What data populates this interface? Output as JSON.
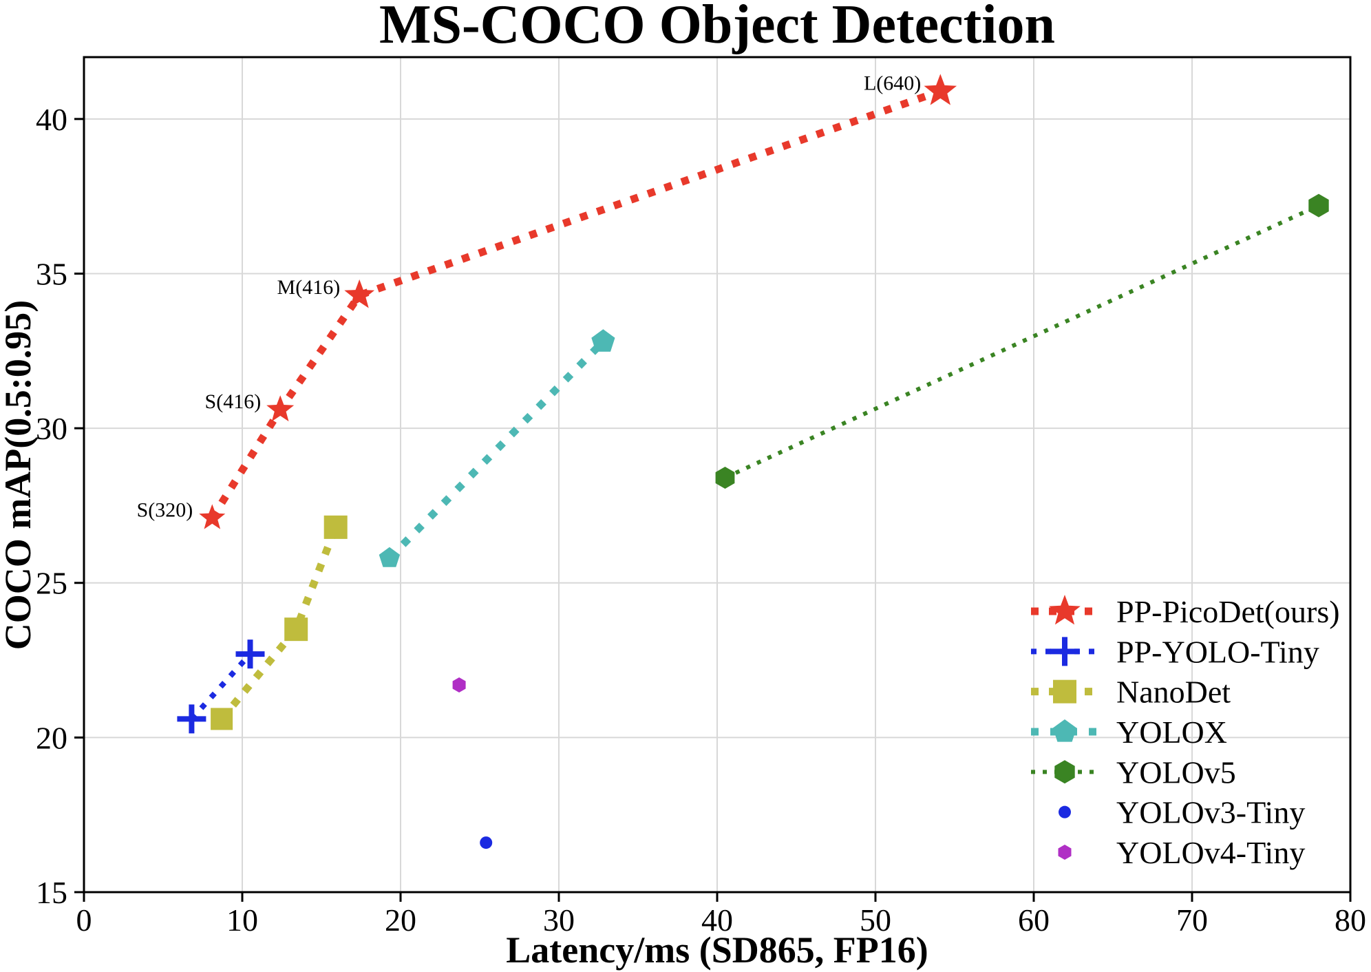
{
  "chart_data": {
    "type": "scatter-line",
    "title": "MS-COCO Object Detection",
    "xlabel": "Latency/ms (SD865, FP16)",
    "ylabel": "COCO mAP(0.5:0.95)",
    "xlim": [
      0,
      80
    ],
    "ylim": [
      15,
      42
    ],
    "x_ticks": [
      0,
      10,
      20,
      30,
      40,
      50,
      60,
      70,
      80
    ],
    "y_ticks": [
      15,
      20,
      25,
      30,
      35,
      40
    ],
    "grid": true,
    "grid_color": "#d8d8d8",
    "legend": {
      "position": "lower right",
      "frame": false
    },
    "series": [
      {
        "name": "PP-PicoDet(ours)",
        "color": "#e8392b",
        "marker": "star",
        "line": "dashed",
        "line_width": 11,
        "dash": [
          11,
          15
        ],
        "points": [
          {
            "x": 8.1,
            "y": 27.1,
            "label": "S(320)",
            "size": 20
          },
          {
            "x": 12.4,
            "y": 30.6,
            "label": "S(416)",
            "size": 21
          },
          {
            "x": 17.4,
            "y": 34.3,
            "label": "M(416)",
            "size": 23
          },
          {
            "x": 54.1,
            "y": 40.9,
            "label": "L(640)",
            "size": 25
          }
        ]
      },
      {
        "name": "PP-YOLO-Tiny",
        "color": "#1b2ae1",
        "marker": "plus",
        "line": "dashed",
        "line_width": 8,
        "dash": [
          8,
          13
        ],
        "points": [
          {
            "x": 6.8,
            "y": 20.6,
            "size": 21
          },
          {
            "x": 10.5,
            "y": 22.7,
            "size": 21
          }
        ]
      },
      {
        "name": "NanoDet",
        "color": "#bfbc3d",
        "marker": "square",
        "line": "dashed",
        "line_width": 11,
        "dash": [
          11,
          15
        ],
        "points": [
          {
            "x": 8.7,
            "y": 20.6,
            "size": 16
          },
          {
            "x": 13.4,
            "y": 23.5,
            "size": 17
          },
          {
            "x": 15.9,
            "y": 26.8,
            "size": 17
          }
        ]
      },
      {
        "name": "YOLOX",
        "color": "#4db8b4",
        "marker": "pentagon",
        "line": "dashed",
        "line_width": 11,
        "dash": [
          11,
          17
        ],
        "points": [
          {
            "x": 19.3,
            "y": 25.8,
            "size": 16
          },
          {
            "x": 32.8,
            "y": 32.8,
            "size": 18
          }
        ]
      },
      {
        "name": "YOLOv5",
        "color": "#3a8423",
        "marker": "hexagon",
        "line": "dotted",
        "line_width": 6,
        "dash": [
          6,
          11
        ],
        "points": [
          {
            "x": 40.5,
            "y": 28.4,
            "size": 16
          },
          {
            "x": 78.0,
            "y": 37.2,
            "size": 17
          }
        ]
      },
      {
        "name": "YOLOv3-Tiny",
        "color": "#1b2ae1",
        "marker": "circle",
        "line": "none",
        "points": [
          {
            "x": 25.4,
            "y": 16.6,
            "size": 9
          }
        ]
      },
      {
        "name": "YOLOv4-Tiny",
        "color": "#b02fc5",
        "marker": "hexagon",
        "line": "none",
        "points": [
          {
            "x": 23.7,
            "y": 21.7,
            "size": 11
          }
        ]
      }
    ]
  }
}
